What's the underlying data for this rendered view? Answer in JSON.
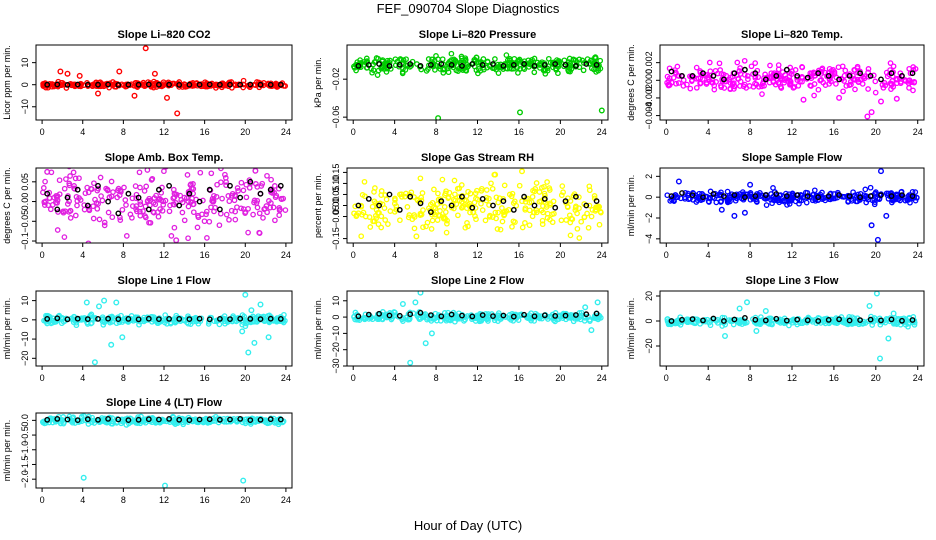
{
  "figure": {
    "title": "FEF_090704  Slope Diagnostics",
    "xlabel": "Hour of Day (UTC)"
  },
  "chart_data": [
    {
      "type": "scatter",
      "title": "Slope Li–820 CO2",
      "ylabel": "Licor ppm per min.",
      "color": "#ff0000",
      "xlim": [
        -0.6,
        24.6
      ],
      "ylim": [
        -16,
        18
      ],
      "xticks": [
        "0",
        "4",
        "8",
        "12",
        "16",
        "20",
        "24"
      ],
      "yticks": [
        {
          "v": -10,
          "label": "−10"
        },
        {
          "v": 0,
          "label": "0"
        },
        {
          "v": 10,
          "label": "10"
        }
      ],
      "band_center": 0,
      "band_spread": 1.2,
      "outliers": [
        [
          10.2,
          16.5
        ],
        [
          13.3,
          -13
        ],
        [
          2.5,
          5
        ],
        [
          3.7,
          4
        ],
        [
          5.5,
          -4
        ],
        [
          7.6,
          6
        ],
        [
          9.1,
          -5
        ],
        [
          11.1,
          5
        ],
        [
          12.3,
          -6
        ],
        [
          1.8,
          6
        ]
      ],
      "hourly_means": [
        0,
        0.1,
        -0.1,
        0.1,
        0,
        0,
        0.1,
        -0.1,
        0,
        0,
        0.1,
        0,
        0,
        -0.1,
        0,
        0,
        0.1,
        0,
        0,
        0,
        0.1,
        0,
        0,
        0
      ]
    },
    {
      "type": "scatter",
      "title": "Slope Li–820 Pressure",
      "ylabel": "kPa per min.",
      "color": "#00cc00",
      "xlim": [
        -0.6,
        24.6
      ],
      "ylim": [
        -0.063,
        0.016
      ],
      "xticks": [
        "0",
        "4",
        "8",
        "12",
        "16",
        "20",
        "24"
      ],
      "yticks": [
        {
          "v": -0.06,
          "label": "−0.06"
        },
        {
          "v": -0.02,
          "label": "−0.02"
        }
      ],
      "band_center": -0.005,
      "band_spread": 0.008,
      "outliers": [
        [
          8.2,
          -0.061
        ],
        [
          16.1,
          -0.055
        ],
        [
          24.0,
          -0.053
        ]
      ],
      "hourly_means": [
        -0.006,
        -0.005,
        -0.004,
        -0.006,
        -0.005,
        -0.004,
        -0.006,
        -0.005,
        -0.004,
        -0.005,
        -0.006,
        -0.004,
        -0.005,
        -0.004,
        -0.006,
        -0.005,
        -0.004,
        -0.006,
        -0.005,
        -0.004,
        -0.005,
        -0.006,
        -0.004,
        -0.005
      ]
    },
    {
      "type": "scatter",
      "title": "Slope Li–820 Temp.",
      "ylabel": "degrees C per min.",
      "color": "#ff00ff",
      "xlim": [
        -0.6,
        24.6
      ],
      "ylim": [
        -0.0045,
        0.004
      ],
      "xticks": [
        "0",
        "4",
        "8",
        "12",
        "16",
        "20",
        "24"
      ],
      "yticks": [
        {
          "v": -0.004,
          "label": "−0.004"
        },
        {
          "v": -0.002,
          "label": "−0.002"
        },
        {
          "v": 0,
          "label": "0.000"
        },
        {
          "v": 0.002,
          "label": "0.002"
        }
      ],
      "band_center": 0.0002,
      "band_spread": 0.0015,
      "outliers": [
        [
          19.2,
          -0.0041
        ],
        [
          19.6,
          -0.0036
        ],
        [
          13.1,
          -0.0022
        ],
        [
          16.5,
          -0.002
        ],
        [
          20.5,
          -0.0024
        ],
        [
          22.0,
          -0.0021
        ]
      ],
      "hourly_means": [
        0.001,
        0.0005,
        0.0005,
        0.0008,
        0.0005,
        0.0001,
        0.0008,
        0.0012,
        0.0008,
        0.0001,
        0.0005,
        0.0012,
        0.0005,
        0.0003,
        0.0008,
        0.0005,
        0.0001,
        0.0005,
        0.0008,
        0.0005,
        0.0001,
        0.0008,
        0.0005,
        0.0008
      ]
    },
    {
      "type": "scatter",
      "title": "Slope Amb. Box Temp.",
      "ylabel": "degrees C per min.",
      "color": "#e020e0",
      "xlim": [
        -0.6,
        24.6
      ],
      "ylim": [
        -0.105,
        0.085
      ],
      "xticks": [
        "0",
        "4",
        "8",
        "12",
        "16",
        "20",
        "24"
      ],
      "yticks": [
        {
          "v": -0.1,
          "label": "−0.1"
        },
        {
          "v": -0.05,
          "label": "−0.05"
        },
        {
          "v": 0,
          "label": "0.00"
        },
        {
          "v": 0.05,
          "label": "0.05"
        }
      ],
      "band_center": 0,
      "band_spread": 0.07,
      "outliers": [
        [
          13.2,
          -0.098
        ],
        [
          0.5,
          0.075
        ],
        [
          21.0,
          0.078
        ]
      ],
      "hourly_means": [
        0.02,
        -0.02,
        0.01,
        0.03,
        -0.01,
        0.04,
        0.0,
        -0.03,
        0.02,
        0.01,
        -0.02,
        0.03,
        0.04,
        -0.01,
        0.02,
        0.0,
        0.03,
        -0.02,
        0.04,
        0.01,
        0.05,
        0.02,
        0.03,
        0.04
      ]
    },
    {
      "type": "scatter",
      "title": "Slope Gas Stream RH",
      "ylabel": "percent per min.",
      "color": "#ffff00",
      "xlim": [
        -0.6,
        24.6
      ],
      "ylim": [
        -0.17,
        0.17
      ],
      "xticks": [
        "0",
        "4",
        "8",
        "12",
        "16",
        "20",
        "24"
      ],
      "yticks": [
        {
          "v": -0.15,
          "label": "−0.15"
        },
        {
          "v": -0.05,
          "label": "−0.05"
        },
        {
          "v": 0,
          "label": "0.00"
        },
        {
          "v": 0.05,
          "label": "0.05"
        },
        {
          "v": 0.1,
          "label": "0.10"
        },
        {
          "v": 0.15,
          "label": "0.15"
        }
      ],
      "band_center": 0,
      "band_spread": 0.11,
      "outliers": [
        [
          16.3,
          0.155
        ],
        [
          6.1,
          -0.14
        ],
        [
          13.7,
          0.14
        ]
      ],
      "hourly_means": [
        0.0,
        0.03,
        0.0,
        0.05,
        -0.02,
        0.04,
        0.01,
        -0.03,
        0.02,
        0.0,
        0.04,
        -0.01,
        0.03,
        0.0,
        0.02,
        -0.02,
        0.04,
        0.0,
        0.03,
        -0.01,
        0.02,
        0.04,
        0.0,
        0.02
      ]
    },
    {
      "type": "scatter",
      "title": "Slope Sample Flow",
      "ylabel": "ml/min per min.",
      "color": "#0000ff",
      "xlim": [
        -0.6,
        24.6
      ],
      "ylim": [
        -4.4,
        2.8
      ],
      "xticks": [
        "0",
        "4",
        "8",
        "12",
        "16",
        "20",
        "24"
      ],
      "yticks": [
        {
          "v": -4,
          "label": "−4"
        },
        {
          "v": -2,
          "label": "−2"
        },
        {
          "v": 0,
          "label": "0"
        },
        {
          "v": 2,
          "label": "2"
        }
      ],
      "band_center": 0,
      "band_spread": 0.6,
      "outliers": [
        [
          20.2,
          -4.1
        ],
        [
          19.6,
          -2.7
        ],
        [
          20.5,
          2.5
        ],
        [
          1.2,
          1.5
        ],
        [
          6.5,
          -1.8
        ],
        [
          8.0,
          1.2
        ],
        [
          7.5,
          -1.5
        ],
        [
          21.0,
          -1.8
        ],
        [
          5.3,
          -1.2
        ]
      ],
      "hourly_means": [
        0.1,
        0.4,
        0.2,
        0.0,
        0.3,
        0.1,
        0.2,
        0.0,
        0.1,
        0.2,
        0.3,
        0.1,
        0.2,
        0.1,
        0.0,
        0.1,
        0.2,
        0.1,
        0.0,
        0.1,
        0.2,
        0.1,
        0.2,
        0.1
      ]
    },
    {
      "type": "scatter",
      "title": "Slope Line 1 Flow",
      "ylabel": "ml/min per min.",
      "color": "#33eeee",
      "xlim": [
        -0.6,
        24.6
      ],
      "ylim": [
        -24,
        15
      ],
      "xticks": [
        "0",
        "4",
        "8",
        "12",
        "16",
        "20",
        "24"
      ],
      "yticks": [
        {
          "v": -20,
          "label": "−20"
        },
        {
          "v": -10,
          "label": "−10"
        },
        {
          "v": 0,
          "label": "0"
        },
        {
          "v": 10,
          "label": "10"
        }
      ],
      "band_center": 0,
      "band_spread": 2.2,
      "outliers": [
        [
          5.2,
          -22
        ],
        [
          6.1,
          10
        ],
        [
          7.3,
          9
        ],
        [
          6.8,
          -13
        ],
        [
          5.6,
          7
        ],
        [
          7.9,
          -9
        ],
        [
          4.4,
          9
        ],
        [
          20.0,
          13
        ],
        [
          20.3,
          -17
        ],
        [
          20.9,
          -12
        ],
        [
          21.5,
          8
        ],
        [
          19.7,
          -6
        ],
        [
          22.3,
          -9
        ],
        [
          20.6,
          5
        ]
      ],
      "hourly_means": [
        0.5,
        0.8,
        0.3,
        0.6,
        0.4,
        0.5,
        0.6,
        0.4,
        0.5,
        0.3,
        0.6,
        0.4,
        0.5,
        0.5,
        0.4,
        0.6,
        0.3,
        0.5,
        0.4,
        0.6,
        0.5,
        0.4,
        0.6,
        0.5
      ]
    },
    {
      "type": "scatter",
      "title": "Slope Line 2 Flow",
      "ylabel": "ml/min per min.",
      "color": "#33eeee",
      "xlim": [
        -0.6,
        24.6
      ],
      "ylim": [
        -30,
        16
      ],
      "xticks": [
        "0",
        "4",
        "8",
        "12",
        "16",
        "20",
        "24"
      ],
      "yticks": [
        {
          "v": -30,
          "label": "−30"
        },
        {
          "v": -20,
          "label": "−20"
        },
        {
          "v": -10,
          "label": "−10"
        },
        {
          "v": 0,
          "label": "0"
        },
        {
          "v": 10,
          "label": "10"
        }
      ],
      "band_center": 0,
      "band_spread": 2.5,
      "outliers": [
        [
          5.5,
          -28
        ],
        [
          6.5,
          15
        ],
        [
          7.0,
          -16
        ],
        [
          6.0,
          9
        ],
        [
          7.6,
          -10
        ],
        [
          4.8,
          8
        ],
        [
          23.6,
          9
        ],
        [
          23.0,
          -8
        ],
        [
          22.4,
          6
        ]
      ],
      "hourly_means": [
        0.5,
        1.5,
        2.0,
        1.0,
        0.8,
        1.8,
        2.6,
        1.2,
        0.5,
        1.6,
        0.9,
        0.4,
        1.2,
        0.6,
        1.0,
        0.3,
        1.4,
        0.5,
        1.1,
        0.7,
        0.9,
        1.3,
        1.8,
        2.2
      ]
    },
    {
      "type": "scatter",
      "title": "Slope Line 3 Flow",
      "ylabel": "ml/min per min.",
      "color": "#33eeee",
      "xlim": [
        -0.6,
        24.6
      ],
      "ylim": [
        -36,
        24
      ],
      "xticks": [
        "0",
        "4",
        "8",
        "12",
        "16",
        "20",
        "24"
      ],
      "yticks": [
        {
          "v": -20,
          "label": "−20"
        },
        {
          "v": 0,
          "label": "0"
        },
        {
          "v": 20,
          "label": "20"
        }
      ],
      "band_center": 0,
      "band_spread": 3,
      "outliers": [
        [
          20.4,
          -30
        ],
        [
          20.1,
          22
        ],
        [
          7.7,
          15
        ],
        [
          8.6,
          -8
        ],
        [
          7.0,
          10
        ],
        [
          21.2,
          -14
        ],
        [
          19.4,
          12
        ],
        [
          5.6,
          -12
        ],
        [
          9.5,
          8
        ],
        [
          21.7,
          6
        ]
      ],
      "hourly_means": [
        0.0,
        1.0,
        1.5,
        0.5,
        2.0,
        0.0,
        1.2,
        2.5,
        1.0,
        0.5,
        1.8,
        0.3,
        1.1,
        0.6,
        0.0,
        0.9,
        1.4,
        0.4,
        0.7,
        1.1,
        0.5,
        1.3,
        0.2,
        0.8
      ]
    },
    {
      "type": "scatter",
      "title": "Slope Line 4 (LT) Flow",
      "ylabel": "ml/min per min.",
      "color": "#33eeee",
      "xlim": [
        -0.6,
        24.6
      ],
      "ylim": [
        -2.3,
        0.25
      ],
      "xticks": [
        "0",
        "4",
        "8",
        "12",
        "16",
        "20",
        "24"
      ],
      "yticks": [
        {
          "v": -2,
          "label": "−2.0"
        },
        {
          "v": -1.5,
          "label": "−1.5"
        },
        {
          "v": -1,
          "label": "−1.0"
        },
        {
          "v": -0.5,
          "label": "−0.5"
        },
        {
          "v": 0,
          "label": "0.0"
        }
      ],
      "band_center": 0,
      "band_spread": 0.12,
      "outliers": [
        [
          4.1,
          -1.95
        ],
        [
          12.1,
          -2.22
        ],
        [
          19.8,
          -2.05
        ],
        [
          4.6,
          0.12
        ],
        [
          8.3,
          -0.15
        ]
      ],
      "hourly_means": [
        0.02,
        0.05,
        0.03,
        0.01,
        0.04,
        0.02,
        0.05,
        0.03,
        0.01,
        0.02,
        0.04,
        0.03,
        0.05,
        0.02,
        0.01,
        0.03,
        0.04,
        0.02,
        0.03,
        0.05,
        0.01,
        0.02,
        0.04,
        0.03
      ]
    }
  ]
}
